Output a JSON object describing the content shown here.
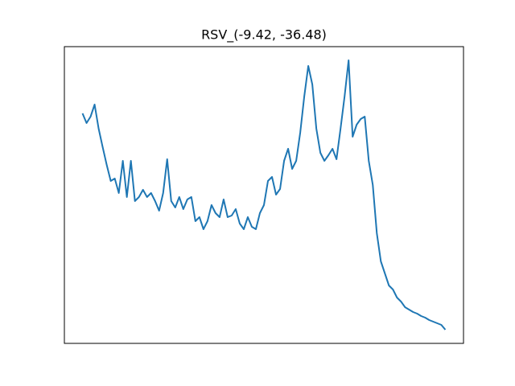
{
  "chart_data": {
    "type": "line",
    "title": "RSV_(-9.42, -36.48)",
    "x": [
      0,
      1,
      2,
      3,
      4,
      5,
      6,
      7,
      8,
      9,
      10,
      11,
      12,
      13,
      14,
      15,
      16,
      17,
      18,
      19,
      20,
      21,
      22,
      23,
      24,
      25,
      26,
      27,
      28,
      29,
      30,
      31,
      32,
      33,
      34,
      35,
      36,
      37,
      38,
      39,
      40,
      41,
      42,
      43,
      44,
      45,
      46,
      47,
      48,
      49,
      50,
      51,
      52,
      53,
      54,
      55,
      56,
      57,
      58,
      59,
      60,
      61,
      62,
      63,
      64,
      65,
      66,
      67,
      68,
      69,
      70,
      71,
      72,
      73,
      74,
      75,
      76,
      77,
      78,
      79,
      80,
      81,
      82,
      83,
      84,
      85,
      86,
      87,
      88,
      89,
      90
    ],
    "series": [
      {
        "color": "#1f77b4",
        "values": [
          286,
          274,
          282,
          297,
          267,
          244,
          222,
          202,
          205,
          187,
          227,
          182,
          227,
          177,
          182,
          191,
          182,
          187,
          177,
          165,
          187,
          229,
          177,
          169,
          182,
          167,
          179,
          182,
          152,
          157,
          142,
          152,
          172,
          162,
          157,
          179,
          157,
          159,
          167,
          149,
          142,
          157,
          145,
          142,
          162,
          172,
          202,
          207,
          185,
          192,
          227,
          242,
          217,
          227,
          262,
          307,
          345,
          322,
          267,
          237,
          227,
          234,
          242,
          229,
          267,
          307,
          352,
          257,
          272,
          279,
          282,
          227,
          197,
          137,
          102,
          87,
          72,
          67,
          57,
          52,
          45,
          42,
          39,
          37,
          34,
          32,
          29,
          27,
          25,
          23,
          17
        ]
      }
    ],
    "xlim": [
      -4.5,
      94.5
    ],
    "ylim": [
      0,
      369
    ]
  }
}
